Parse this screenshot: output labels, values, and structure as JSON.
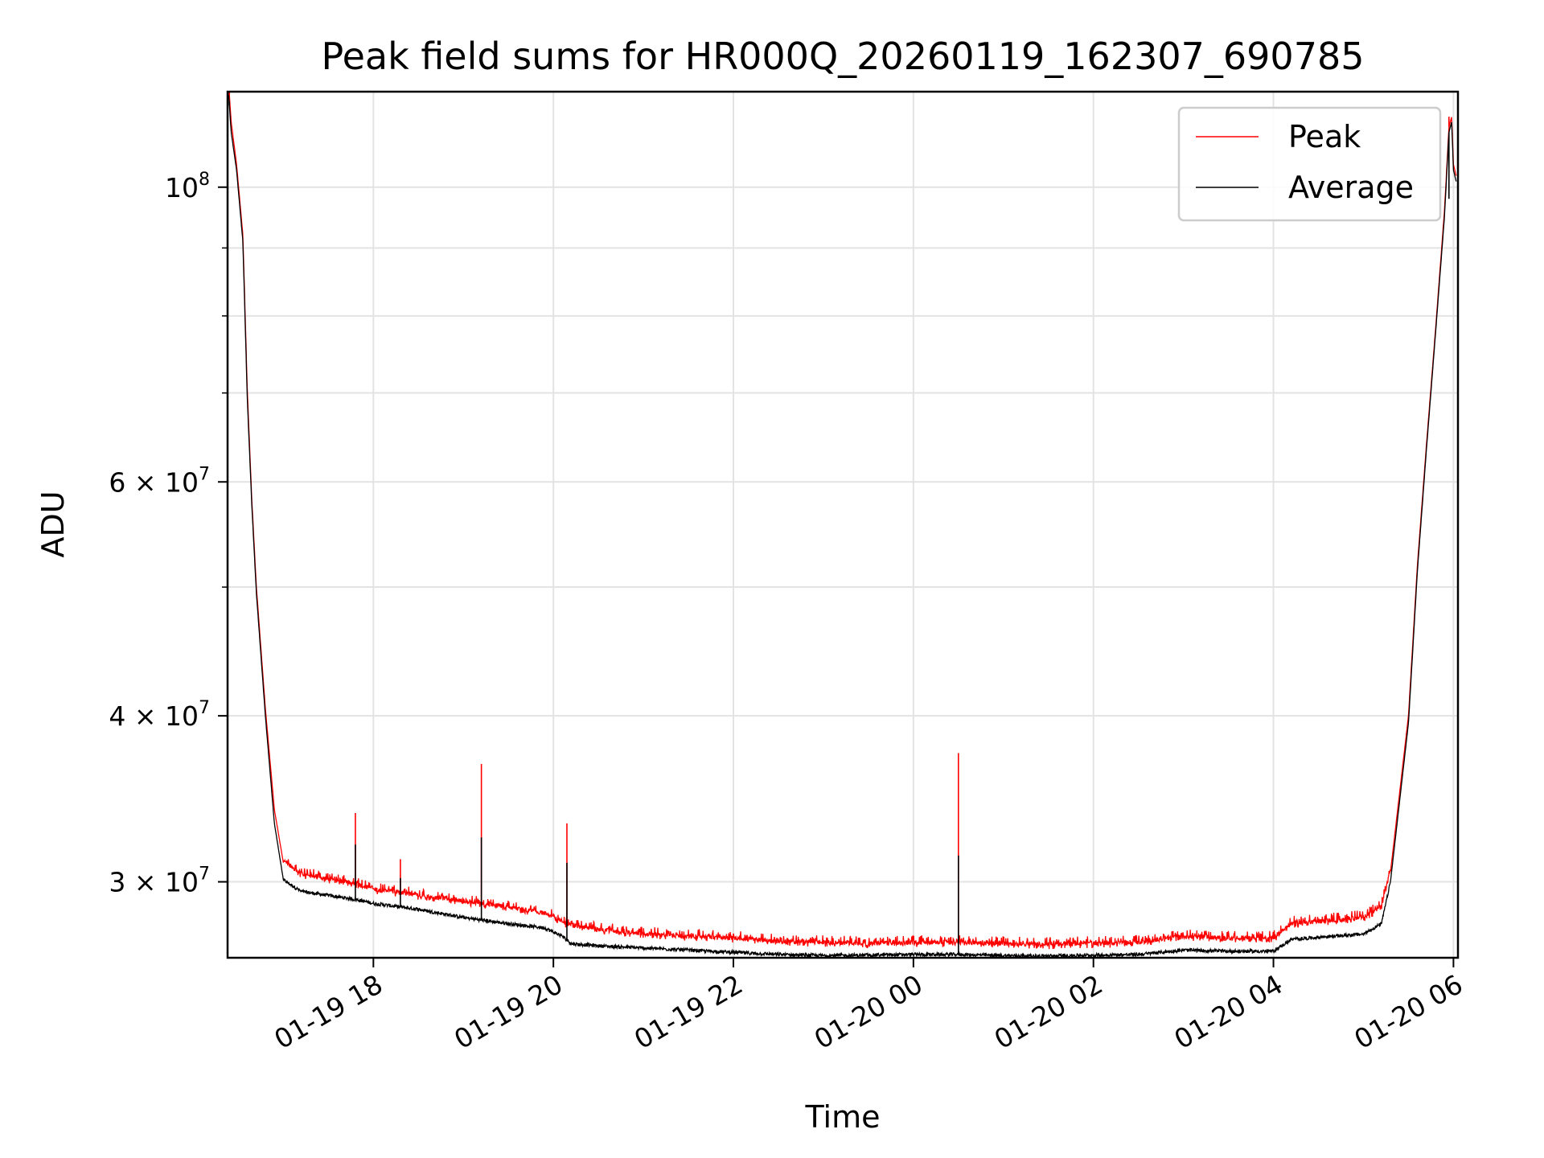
{
  "chart_data": {
    "type": "line",
    "title": "Peak field sums for HR000Q_20260119_162307_690785",
    "xlabel": "Time",
    "ylabel": "ADU",
    "yscale": "log",
    "ylim": [
      26300000,
      118000000
    ],
    "xlim_hours": [
      16.38,
      30.05
    ],
    "grid": true,
    "legend_position": "top-right",
    "x_ticks": [
      {
        "hours": 18,
        "label": "01-19 18"
      },
      {
        "hours": 20,
        "label": "01-19 20"
      },
      {
        "hours": 22,
        "label": "01-19 22"
      },
      {
        "hours": 24,
        "label": "01-20 00"
      },
      {
        "hours": 26,
        "label": "01-20 02"
      },
      {
        "hours": 28,
        "label": "01-20 04"
      },
      {
        "hours": 30,
        "label": "01-20 06"
      }
    ],
    "y_ticks": [
      {
        "value": 100000000,
        "base": "10",
        "exp": "8"
      },
      {
        "value": 60000000,
        "base": "6 × 10",
        "exp": "7"
      },
      {
        "value": 40000000,
        "base": "4 × 10",
        "exp": "7"
      },
      {
        "value": 30000000,
        "base": "3 × 10",
        "exp": "7"
      }
    ],
    "y_minor_ticks": [
      50000000,
      70000000,
      80000000,
      90000000
    ],
    "series": [
      {
        "name": "Peak",
        "color": "#ff0000",
        "x_hours": [
          16.39,
          16.42,
          16.48,
          16.55,
          16.6,
          16.65,
          16.7,
          16.8,
          16.9,
          17.0,
          17.2,
          17.5,
          17.8,
          18.0,
          18.5,
          19.0,
          19.5,
          19.9,
          20.1,
          20.2,
          20.5,
          21.0,
          21.5,
          22.0,
          22.5,
          23.0,
          23.5,
          24.0,
          24.5,
          25.0,
          25.5,
          26.0,
          26.5,
          27.0,
          27.5,
          28.0,
          28.2,
          28.5,
          29.0,
          29.2,
          29.3,
          29.5,
          29.6,
          29.7,
          29.8,
          29.9,
          29.95,
          29.98,
          30.0,
          30.03
        ],
        "values": [
          120000000,
          112000000,
          104000000,
          92000000,
          70000000,
          58000000,
          50000000,
          40500000,
          34000000,
          31000000,
          30300000,
          30000000,
          29800000,
          29500000,
          29200000,
          28900000,
          28600000,
          28300000,
          27900000,
          27700000,
          27500000,
          27300000,
          27200000,
          27100000,
          26950000,
          26900000,
          26850000,
          26900000,
          26900000,
          26850000,
          26800000,
          26850000,
          26900000,
          27200000,
          27100000,
          27100000,
          27800000,
          27900000,
          28100000,
          28600000,
          30500000,
          40000000,
          52000000,
          64000000,
          78000000,
          96000000,
          111000000,
          113000000,
          104000000,
          102000000
        ]
      },
      {
        "name": "Average",
        "color": "#000000",
        "x_hours": [
          16.39,
          16.42,
          16.48,
          16.55,
          16.6,
          16.65,
          16.7,
          16.8,
          16.9,
          17.0,
          17.2,
          17.5,
          17.8,
          18.0,
          18.5,
          19.0,
          19.5,
          19.9,
          20.1,
          20.2,
          20.5,
          21.0,
          21.5,
          22.0,
          22.5,
          23.0,
          23.5,
          24.0,
          24.5,
          25.0,
          25.5,
          26.0,
          26.5,
          27.0,
          27.5,
          28.0,
          28.2,
          28.5,
          29.0,
          29.2,
          29.3,
          29.5,
          29.6,
          29.7,
          29.8,
          29.9,
          29.95,
          29.98,
          30.0,
          30.03
        ],
        "values": [
          118000000,
          110000000,
          103000000,
          91000000,
          69000000,
          57500000,
          49500000,
          40000000,
          33200000,
          30100000,
          29500000,
          29300000,
          29100000,
          28900000,
          28600000,
          28200000,
          27900000,
          27700000,
          27300000,
          26950000,
          26850000,
          26750000,
          26650000,
          26550000,
          26450000,
          26400000,
          26420000,
          26450000,
          26450000,
          26400000,
          26380000,
          26420000,
          26450000,
          26650000,
          26600000,
          26600000,
          27150000,
          27250000,
          27400000,
          27900000,
          30000000,
          39500000,
          51500000,
          63500000,
          77500000,
          95000000,
          110000000,
          112000000,
          103000000,
          101000000
        ]
      }
    ],
    "spikes": [
      {
        "hours": 16.4,
        "peak": 118000000,
        "average": 116000000
      },
      {
        "hours": 17.8,
        "peak": 33800000,
        "average": 32000000
      },
      {
        "hours": 18.3,
        "peak": 31200000,
        "average": 30200000
      },
      {
        "hours": 19.2,
        "peak": 36800000,
        "average": 32400000
      },
      {
        "hours": 20.15,
        "peak": 33200000,
        "average": 31000000
      },
      {
        "hours": 24.5,
        "peak": 37500000,
        "average": 31400000
      },
      {
        "hours": 29.95,
        "peak": 113000000,
        "average": 98000000
      }
    ]
  }
}
